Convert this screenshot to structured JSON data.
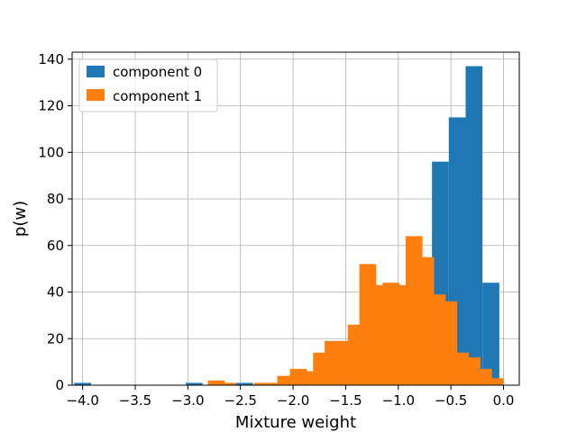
{
  "chart_data": {
    "type": "bar",
    "xlabel": "Mixture weight",
    "ylabel": "p(w)",
    "xlim": [
      -4.1,
      0.15
    ],
    "ylim": [
      0,
      143
    ],
    "xticks": [
      -4.0,
      -3.5,
      -3.0,
      -2.5,
      -2.0,
      -1.5,
      -1.0,
      -0.5,
      0.0
    ],
    "xtick_labels": [
      "−4.0",
      "−3.5",
      "−3.0",
      "−2.5",
      "−2.0",
      "−1.5",
      "−1.0",
      "−0.5",
      "0.0"
    ],
    "yticks": [
      0,
      20,
      40,
      60,
      80,
      100,
      120,
      140
    ],
    "grid": true,
    "legend_position": "top-left",
    "bin_width": 0.16,
    "series": [
      {
        "name": "component 0",
        "color": "#1f77b4",
        "bins": [
          {
            "x": -4.0,
            "y": 1
          },
          {
            "x": -2.94,
            "y": 1
          },
          {
            "x": -2.46,
            "y": 1
          },
          {
            "x": -0.6,
            "y": 96
          },
          {
            "x": -0.44,
            "y": 115
          },
          {
            "x": -0.28,
            "y": 137
          },
          {
            "x": -0.12,
            "y": 44
          }
        ]
      },
      {
        "name": "component 1",
        "color": "#ff7f0e",
        "bins": [
          {
            "x": -2.73,
            "y": 2
          },
          {
            "x": -2.62,
            "y": 1
          },
          {
            "x": -2.29,
            "y": 1
          },
          {
            "x": -2.18,
            "y": 1
          },
          {
            "x": -2.07,
            "y": 4
          },
          {
            "x": -1.95,
            "y": 7
          },
          {
            "x": -1.84,
            "y": 6
          },
          {
            "x": -1.73,
            "y": 14
          },
          {
            "x": -1.62,
            "y": 19
          },
          {
            "x": -1.51,
            "y": 19
          },
          {
            "x": -1.4,
            "y": 26
          },
          {
            "x": -1.29,
            "y": 52
          },
          {
            "x": -1.18,
            "y": 43
          },
          {
            "x": -1.07,
            "y": 44
          },
          {
            "x": -0.96,
            "y": 43
          },
          {
            "x": -0.85,
            "y": 64
          },
          {
            "x": -0.74,
            "y": 55
          },
          {
            "x": -0.63,
            "y": 39
          },
          {
            "x": -0.52,
            "y": 36
          },
          {
            "x": -0.41,
            "y": 14
          },
          {
            "x": -0.3,
            "y": 12
          },
          {
            "x": -0.19,
            "y": 7
          },
          {
            "x": -0.08,
            "y": 3
          }
        ]
      }
    ]
  }
}
